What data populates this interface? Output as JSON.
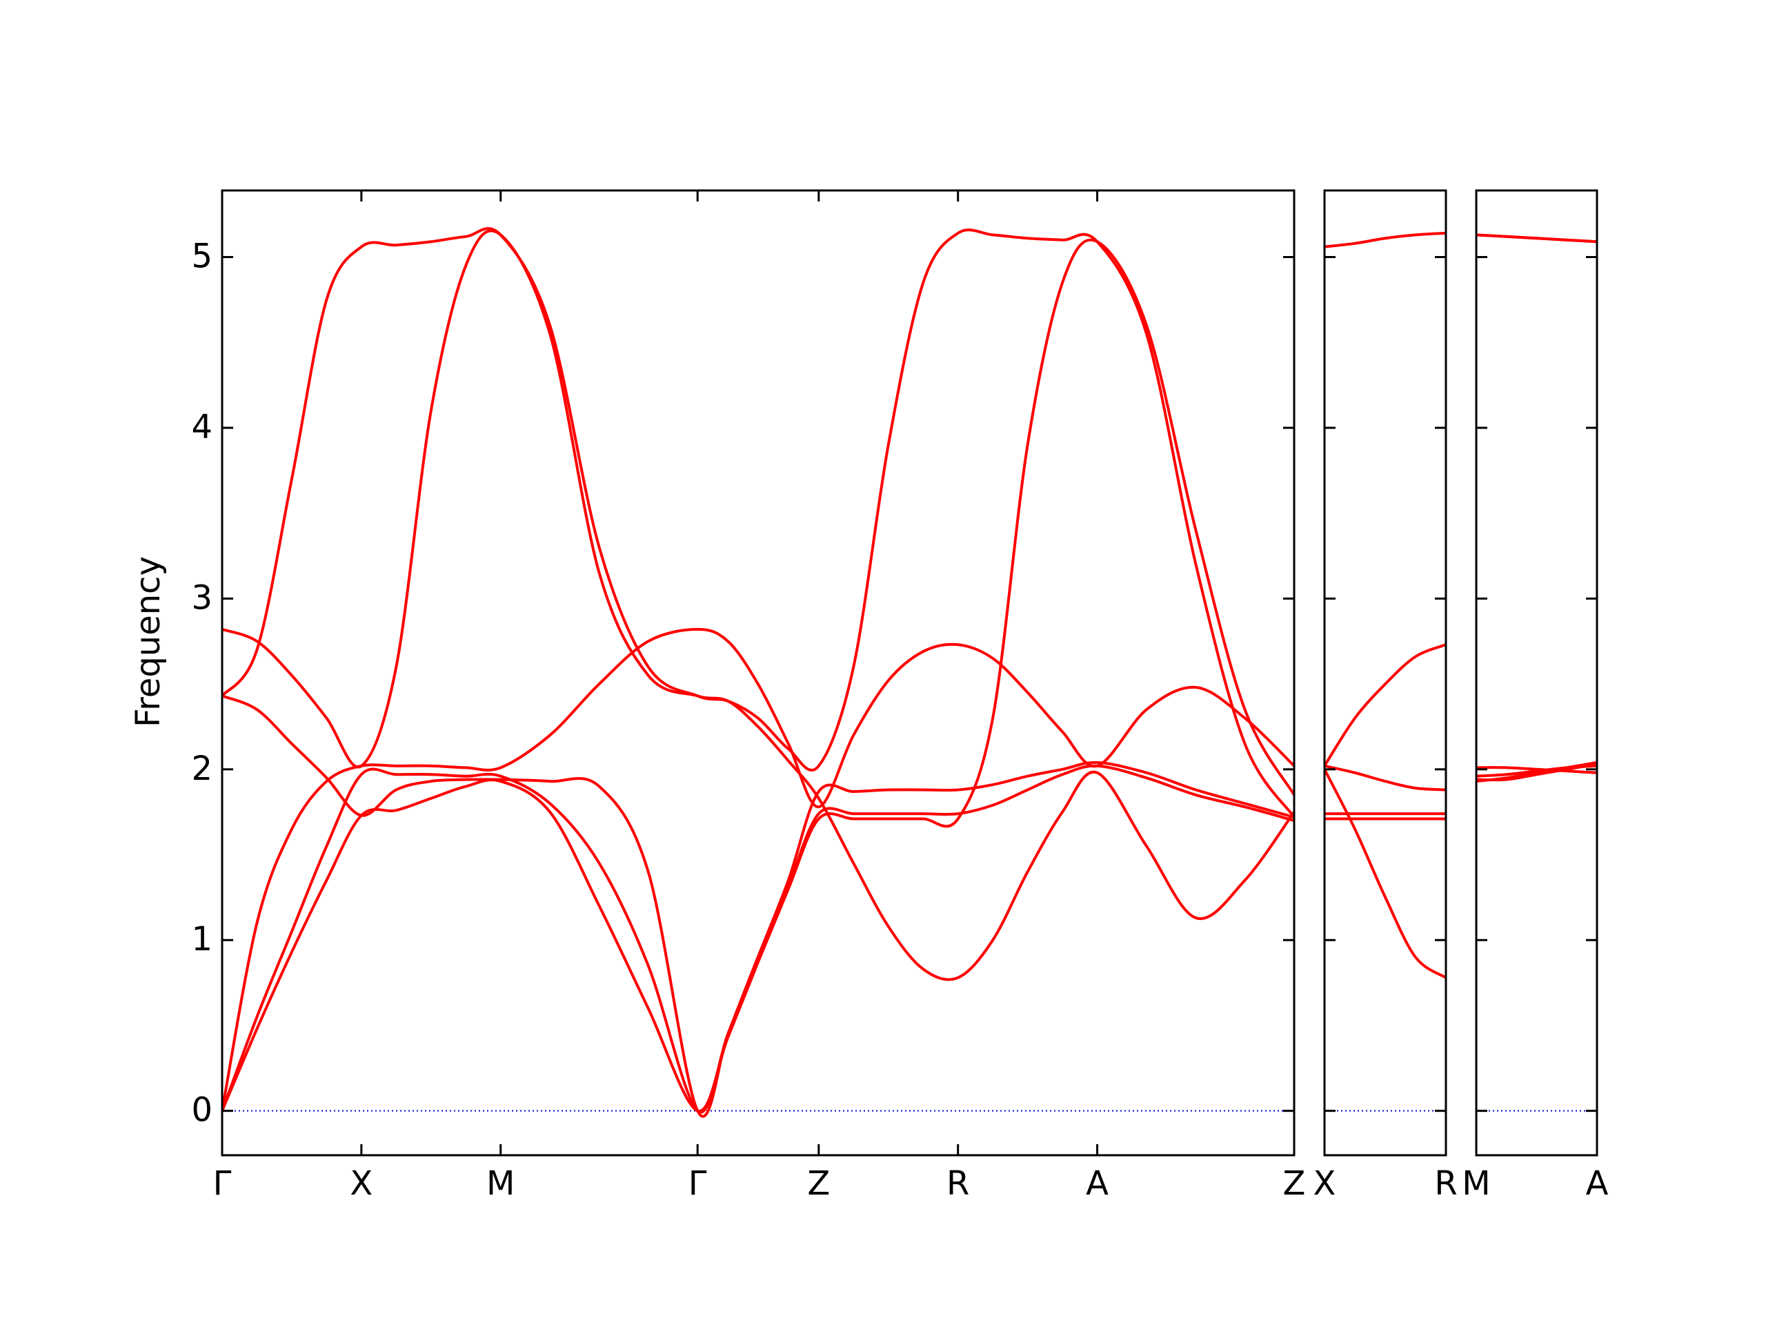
{
  "chart_data": [
    {
      "type": "line",
      "ylabel": "Frequency",
      "x": [
        0,
        0.125,
        0.25,
        0.375,
        0.5,
        0.625,
        0.75,
        0.875,
        1.0,
        1.177,
        1.354,
        1.53,
        1.707,
        1.816,
        1.924,
        2.033,
        2.142,
        2.267,
        2.392,
        2.517,
        2.642,
        2.767,
        2.892,
        3.017,
        3.142,
        3.319,
        3.496,
        3.672,
        3.849
      ],
      "xlim": [
        0,
        3.849
      ],
      "xticks": [
        {
          "value": 0,
          "label": "Γ"
        },
        {
          "value": 0.5,
          "label": "X"
        },
        {
          "value": 1.0,
          "label": "M"
        },
        {
          "value": 1.707,
          "label": "Γ"
        },
        {
          "value": 2.142,
          "label": "Z"
        },
        {
          "value": 2.642,
          "label": "R"
        },
        {
          "value": 3.142,
          "label": "A"
        },
        {
          "value": 3.849,
          "label": "Z"
        }
      ],
      "ylim": [
        -0.26,
        5.39
      ],
      "yticks": [
        0,
        1,
        2,
        3,
        4,
        5
      ],
      "ytick_labels": true,
      "zero_line": {
        "value": 0,
        "color": "#0000cc"
      },
      "series": [
        {
          "color": "#ff0000",
          "values": [
            2.43,
            2.7,
            3.7,
            4.75,
            5.06,
            5.07,
            5.09,
            5.12,
            5.13,
            4.6,
            3.3,
            2.6,
            2.43,
            2.4,
            2.3,
            2.12,
            2.02,
            2.6,
            3.9,
            4.85,
            5.14,
            5.13,
            5.11,
            5.1,
            5.09,
            4.55,
            3.2,
            2.15,
            1.72
          ]
        },
        {
          "color": "#ff0000",
          "values": [
            2.82,
            2.75,
            2.55,
            2.3,
            2.02,
            2.6,
            4.1,
            4.95,
            5.13,
            4.55,
            3.15,
            2.55,
            2.43,
            2.4,
            2.25,
            2.05,
            1.83,
            1.45,
            1.08,
            0.83,
            0.78,
            1.0,
            1.4,
            1.75,
            1.98,
            1.55,
            1.13,
            1.35,
            1.75
          ]
        },
        {
          "color": "#ff0000",
          "values": [
            2.43,
            2.35,
            2.15,
            1.95,
            1.73,
            1.88,
            1.93,
            1.94,
            1.94,
            1.93,
            1.9,
            1.4,
            0,
            0.45,
            0.9,
            1.35,
            1.87,
            1.87,
            1.88,
            1.88,
            1.88,
            1.91,
            1.96,
            2.0,
            2.04,
            1.98,
            1.88,
            1.8,
            1.72
          ]
        },
        {
          "color": "#ff0000",
          "values": [
            0,
            1.1,
            1.65,
            1.93,
            2.02,
            2.02,
            2.02,
            2.01,
            2.01,
            2.2,
            2.5,
            2.75,
            2.82,
            2.75,
            2.5,
            2.15,
            1.78,
            2.2,
            2.52,
            2.69,
            2.73,
            2.65,
            2.45,
            2.22,
            2.02,
            2.35,
            2.48,
            2.3,
            2.02
          ]
        },
        {
          "color": "#ff0000",
          "values": [
            0,
            0.55,
            1.05,
            1.55,
            1.97,
            1.97,
            1.97,
            1.96,
            1.96,
            1.8,
            1.45,
            0.85,
            0,
            0.45,
            0.9,
            1.32,
            1.74,
            1.74,
            1.74,
            1.74,
            1.74,
            1.79,
            1.88,
            1.97,
            2.02,
            1.95,
            1.85,
            1.78,
            1.7
          ]
        },
        {
          "color": "#ff0000",
          "values": [
            0,
            0.48,
            0.93,
            1.35,
            1.73,
            1.76,
            1.83,
            1.9,
            1.93,
            1.75,
            1.2,
            0.6,
            0,
            0.43,
            0.87,
            1.3,
            1.71,
            1.71,
            1.71,
            1.71,
            1.71,
            2.3,
            3.9,
            4.85,
            5.09,
            4.6,
            3.4,
            2.35,
            1.85
          ]
        }
      ]
    },
    {
      "type": "line",
      "x": [
        0,
        0.109,
        0.218,
        0.326,
        0.435
      ],
      "xlim": [
        0,
        0.435
      ],
      "xticks": [
        {
          "value": 0,
          "label": "X"
        },
        {
          "value": 0.435,
          "label": "R"
        }
      ],
      "ylim": [
        -0.26,
        5.39
      ],
      "yticks": [
        0,
        1,
        2,
        3,
        4,
        5
      ],
      "ytick_labels": false,
      "zero_line": {
        "value": 0,
        "color": "#0000cc"
      },
      "series": [
        {
          "color": "#ff0000",
          "values": [
            5.06,
            5.08,
            5.11,
            5.13,
            5.14
          ]
        },
        {
          "color": "#ff0000",
          "values": [
            2.02,
            2.3,
            2.5,
            2.66,
            2.73
          ]
        },
        {
          "color": "#ff0000",
          "values": [
            2.02,
            1.98,
            1.93,
            1.89,
            1.88
          ]
        },
        {
          "color": "#ff0000",
          "values": [
            2.0,
            1.65,
            1.25,
            0.9,
            0.78
          ]
        },
        {
          "color": "#ff0000",
          "values": [
            1.74,
            1.74,
            1.74,
            1.74,
            1.74
          ]
        },
        {
          "color": "#ff0000",
          "values": [
            1.71,
            1.71,
            1.71,
            1.71,
            1.71
          ]
        }
      ]
    },
    {
      "type": "line",
      "x": [
        0,
        0.109,
        0.218,
        0.326,
        0.435
      ],
      "xlim": [
        0,
        0.435
      ],
      "xticks": [
        {
          "value": 0,
          "label": "M"
        },
        {
          "value": 0.435,
          "label": "A"
        }
      ],
      "ylim": [
        -0.26,
        5.39
      ],
      "yticks": [
        0,
        1,
        2,
        3,
        4,
        5
      ],
      "ytick_labels": false,
      "zero_line": {
        "value": 0,
        "color": "#0000cc"
      },
      "series": [
        {
          "color": "#ff0000",
          "values": [
            5.13,
            5.12,
            5.11,
            5.1,
            5.09
          ]
        },
        {
          "color": "#ff0000",
          "values": [
            5.13,
            5.12,
            5.11,
            5.1,
            5.09
          ]
        },
        {
          "color": "#ff0000",
          "values": [
            2.01,
            2.01,
            2.0,
            1.99,
            1.98
          ]
        },
        {
          "color": "#ff0000",
          "values": [
            1.96,
            1.97,
            1.99,
            2.01,
            2.02
          ]
        },
        {
          "color": "#ff0000",
          "values": [
            1.93,
            1.95,
            1.98,
            2.01,
            2.04
          ]
        },
        {
          "color": "#ff0000",
          "values": [
            1.94,
            1.94,
            1.97,
            2.0,
            2.03
          ]
        }
      ]
    }
  ]
}
